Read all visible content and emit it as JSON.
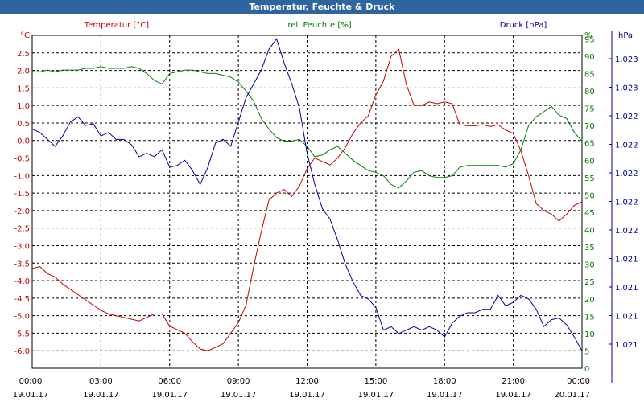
{
  "window": {
    "title": "Temperatur, Feuchte & Druck"
  },
  "colors": {
    "title_bar": "#2f659f",
    "temperature": "#cc0000",
    "humidity": "#008000",
    "pressure": "#00009c",
    "grid": "#000000"
  },
  "chart_data": {
    "type": "line",
    "title": "Temperatur, Feuchte & Druck",
    "grid": true,
    "x": {
      "range": [
        "19.01.17 00:00",
        "20.01.17 00:00"
      ],
      "ticks": [
        {
          "time": "00:00",
          "date": "19.01.17"
        },
        {
          "time": "03:00",
          "date": "19.01.17"
        },
        {
          "time": "06:00",
          "date": "19.01.17"
        },
        {
          "time": "09:00",
          "date": "19.01.17"
        },
        {
          "time": "12:00",
          "date": "19.01.17"
        },
        {
          "time": "15:00",
          "date": "19.01.17"
        },
        {
          "time": "18:00",
          "date": "19.01.17"
        },
        {
          "time": "21:00",
          "date": "19.01.17"
        },
        {
          "time": "00:00",
          "date": "20.01.17"
        }
      ]
    },
    "axes": {
      "temperature": {
        "unit": "°C",
        "side": "left",
        "range": [
          -6.5,
          3.0
        ],
        "ticks": [
          "2.5",
          "2.0",
          "1.5",
          "1.0",
          "0.5",
          "0.0",
          "-0.5",
          "-1.0",
          "-1.5",
          "-2.0",
          "-2.5",
          "-3.0",
          "-3.5",
          "-4.0",
          "-4.5",
          "-5.0",
          "-5.5",
          "-6.0"
        ]
      },
      "humidity": {
        "unit": "%",
        "side": "right",
        "range": [
          0,
          96
        ],
        "ticks": [
          "95",
          "90",
          "85",
          "80",
          "75",
          "70",
          "65",
          "60",
          "55",
          "50",
          "45",
          "40",
          "35",
          "30",
          "25",
          "20",
          "15",
          "10",
          "5",
          "0"
        ]
      },
      "pressure": {
        "unit": "hPa",
        "side": "right",
        "ticks": [
          "1.023",
          "1.023",
          "1.022",
          "1.022",
          "1.022",
          "1.022",
          "1.022",
          "1.021",
          "1.021",
          "1.021",
          "1.021"
        ]
      }
    },
    "series": [
      {
        "name": "Temperatur [°C]",
        "axis": "temperature",
        "points": [
          [
            "00:00",
            -3.65
          ],
          [
            "00:20",
            -3.6
          ],
          [
            "00:40",
            -3.8
          ],
          [
            "01:00",
            -3.9
          ],
          [
            "01:20",
            -4.1
          ],
          [
            "01:40",
            -4.25
          ],
          [
            "02:00",
            -4.4
          ],
          [
            "02:20",
            -4.55
          ],
          [
            "02:40",
            -4.7
          ],
          [
            "03:00",
            -4.85
          ],
          [
            "03:20",
            -4.95
          ],
          [
            "03:40",
            -5.0
          ],
          [
            "04:00",
            -5.05
          ],
          [
            "04:20",
            -5.1
          ],
          [
            "04:40",
            -5.15
          ],
          [
            "05:00",
            -5.05
          ],
          [
            "05:20",
            -4.95
          ],
          [
            "05:40",
            -4.95
          ],
          [
            "06:00",
            -5.3
          ],
          [
            "06:20",
            -5.4
          ],
          [
            "06:40",
            -5.5
          ],
          [
            "07:00",
            -5.75
          ],
          [
            "07:20",
            -5.95
          ],
          [
            "07:40",
            -6.0
          ],
          [
            "08:00",
            -5.9
          ],
          [
            "08:20",
            -5.8
          ],
          [
            "08:40",
            -5.5
          ],
          [
            "09:00",
            -5.2
          ],
          [
            "09:20",
            -4.7
          ],
          [
            "09:40",
            -3.6
          ],
          [
            "10:00",
            -2.6
          ],
          [
            "10:20",
            -1.7
          ],
          [
            "10:40",
            -1.5
          ],
          [
            "11:00",
            -1.4
          ],
          [
            "11:20",
            -1.6
          ],
          [
            "11:40",
            -1.3
          ],
          [
            "12:00",
            -0.8
          ],
          [
            "12:20",
            -0.5
          ],
          [
            "12:40",
            -0.6
          ],
          [
            "13:00",
            -0.7
          ],
          [
            "13:20",
            -0.5
          ],
          [
            "13:40",
            -0.2
          ],
          [
            "14:00",
            0.2
          ],
          [
            "14:20",
            0.5
          ],
          [
            "14:40",
            0.7
          ],
          [
            "15:00",
            1.3
          ],
          [
            "15:20",
            1.7
          ],
          [
            "15:40",
            2.4
          ],
          [
            "16:00",
            2.6
          ],
          [
            "16:20",
            1.6
          ],
          [
            "16:40",
            1.0
          ],
          [
            "17:00",
            1.0
          ],
          [
            "17:20",
            1.1
          ],
          [
            "17:40",
            1.05
          ],
          [
            "18:00",
            1.1
          ],
          [
            "18:20",
            1.05
          ],
          [
            "18:40",
            0.45
          ],
          [
            "19:00",
            0.42
          ],
          [
            "19:20",
            0.42
          ],
          [
            "19:40",
            0.45
          ],
          [
            "20:00",
            0.4
          ],
          [
            "20:20",
            0.45
          ],
          [
            "20:40",
            0.3
          ],
          [
            "21:00",
            0.2
          ],
          [
            "21:20",
            -0.3
          ],
          [
            "21:40",
            -1.0
          ],
          [
            "22:00",
            -1.8
          ],
          [
            "22:20",
            -2.0
          ],
          [
            "22:40",
            -2.1
          ],
          [
            "23:00",
            -2.3
          ],
          [
            "23:20",
            -2.1
          ],
          [
            "23:40",
            -1.85
          ],
          [
            "24:00",
            -1.75
          ]
        ]
      },
      {
        "name": "rel. Feuchte [%]",
        "axis": "humidity",
        "points": [
          [
            "00:00",
            85.5
          ],
          [
            "00:20",
            85.5
          ],
          [
            "00:40",
            86
          ],
          [
            "01:00",
            85.5
          ],
          [
            "01:20",
            86
          ],
          [
            "01:40",
            86
          ],
          [
            "02:00",
            86
          ],
          [
            "02:20",
            86.5
          ],
          [
            "02:40",
            86.5
          ],
          [
            "03:00",
            87
          ],
          [
            "03:20",
            86.5
          ],
          [
            "03:40",
            86.5
          ],
          [
            "04:00",
            86.5
          ],
          [
            "04:20",
            87
          ],
          [
            "04:40",
            86.5
          ],
          [
            "05:00",
            85
          ],
          [
            "05:20",
            83
          ],
          [
            "05:40",
            82
          ],
          [
            "06:00",
            85
          ],
          [
            "06:20",
            85.5
          ],
          [
            "06:40",
            86
          ],
          [
            "07:00",
            86
          ],
          [
            "07:20",
            85.5
          ],
          [
            "07:40",
            85
          ],
          [
            "08:00",
            85
          ],
          [
            "08:20",
            84.5
          ],
          [
            "08:40",
            84
          ],
          [
            "09:00",
            82.5
          ],
          [
            "09:20",
            80
          ],
          [
            "09:40",
            77
          ],
          [
            "10:00",
            72
          ],
          [
            "10:20",
            69
          ],
          [
            "10:40",
            66.5
          ],
          [
            "11:00",
            65.5
          ],
          [
            "11:20",
            65.5
          ],
          [
            "11:40",
            66
          ],
          [
            "12:00",
            64
          ],
          [
            "12:20",
            61
          ],
          [
            "12:40",
            61.5
          ],
          [
            "13:00",
            63
          ],
          [
            "13:20",
            64
          ],
          [
            "13:40",
            62
          ],
          [
            "14:00",
            60
          ],
          [
            "14:20",
            58.5
          ],
          [
            "14:40",
            57
          ],
          [
            "15:00",
            56.5
          ],
          [
            "15:20",
            55.5
          ],
          [
            "15:40",
            53
          ],
          [
            "16:00",
            52
          ],
          [
            "16:20",
            54
          ],
          [
            "16:40",
            56.5
          ],
          [
            "17:00",
            57
          ],
          [
            "17:20",
            55.5
          ],
          [
            "17:40",
            55
          ],
          [
            "18:00",
            55
          ],
          [
            "18:20",
            55.5
          ],
          [
            "18:40",
            58
          ],
          [
            "19:00",
            58.5
          ],
          [
            "19:20",
            58.5
          ],
          [
            "19:40",
            58.5
          ],
          [
            "20:00",
            58.5
          ],
          [
            "20:20",
            58.5
          ],
          [
            "20:40",
            58
          ],
          [
            "21:00",
            59
          ],
          [
            "21:20",
            63
          ],
          [
            "21:40",
            70
          ],
          [
            "22:00",
            72.5
          ],
          [
            "22:20",
            74
          ],
          [
            "22:40",
            75.5
          ],
          [
            "23:00",
            73
          ],
          [
            "23:20",
            72
          ],
          [
            "23:40",
            68
          ],
          [
            "24:00",
            65.5
          ]
        ]
      },
      {
        "name": "Druck [hPa]",
        "axis": "pressure",
        "points": [
          [
            "00:00",
            69
          ],
          [
            "00:20",
            68
          ],
          [
            "00:40",
            66
          ],
          [
            "01:00",
            64
          ],
          [
            "01:20",
            67
          ],
          [
            "01:40",
            71
          ],
          [
            "02:00",
            72.5
          ],
          [
            "02:20",
            70
          ],
          [
            "02:40",
            70.5
          ],
          [
            "03:00",
            67
          ],
          [
            "03:20",
            68
          ],
          [
            "03:40",
            66
          ],
          [
            "04:00",
            66
          ],
          [
            "04:20",
            64.5
          ],
          [
            "04:40",
            61
          ],
          [
            "05:00",
            62
          ],
          [
            "05:20",
            61
          ],
          [
            "05:40",
            63
          ],
          [
            "06:00",
            58
          ],
          [
            "06:20",
            58.5
          ],
          [
            "06:40",
            60
          ],
          [
            "07:00",
            57
          ],
          [
            "07:20",
            53
          ],
          [
            "07:40",
            58
          ],
          [
            "08:00",
            65
          ],
          [
            "08:20",
            66
          ],
          [
            "08:40",
            64
          ],
          [
            "09:00",
            71
          ],
          [
            "09:20",
            78
          ],
          [
            "09:40",
            82
          ],
          [
            "10:00",
            86
          ],
          [
            "10:20",
            92
          ],
          [
            "10:40",
            95
          ],
          [
            "11:00",
            88
          ],
          [
            "11:20",
            82
          ],
          [
            "11:40",
            75
          ],
          [
            "12:00",
            62
          ],
          [
            "12:20",
            53
          ],
          [
            "12:40",
            46
          ],
          [
            "13:00",
            43
          ],
          [
            "13:20",
            37
          ],
          [
            "13:40",
            30
          ],
          [
            "14:00",
            25
          ],
          [
            "14:20",
            21
          ],
          [
            "14:40",
            20
          ],
          [
            "15:00",
            17.5
          ],
          [
            "15:20",
            11
          ],
          [
            "15:40",
            12
          ],
          [
            "16:00",
            10
          ],
          [
            "16:20",
            11
          ],
          [
            "16:40",
            12
          ],
          [
            "17:00",
            11
          ],
          [
            "17:20",
            12
          ],
          [
            "17:40",
            11
          ],
          [
            "18:00",
            9
          ],
          [
            "18:20",
            13
          ],
          [
            "18:40",
            15
          ],
          [
            "19:00",
            16
          ],
          [
            "19:20",
            16
          ],
          [
            "19:40",
            17
          ],
          [
            "20:00",
            17
          ],
          [
            "20:20",
            21
          ],
          [
            "20:40",
            18
          ],
          [
            "21:00",
            19
          ],
          [
            "21:20",
            21
          ],
          [
            "21:40",
            20
          ],
          [
            "22:00",
            17
          ],
          [
            "22:20",
            12
          ],
          [
            "22:40",
            14
          ],
          [
            "23:00",
            14.5
          ],
          [
            "23:20",
            12.5
          ],
          [
            "23:40",
            9
          ],
          [
            "24:00",
            5
          ]
        ]
      }
    ]
  }
}
